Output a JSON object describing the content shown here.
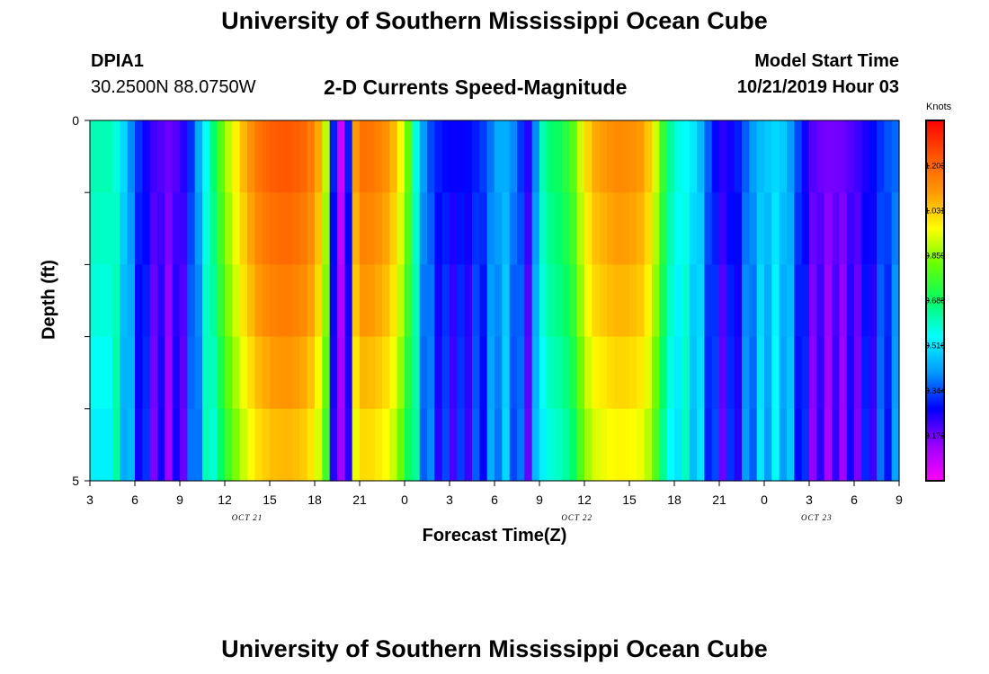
{
  "header": {
    "title_top": "University of Southern Mississippi Ocean Cube",
    "station_id": "DPIA1",
    "coordinates": "30.2500N 88.0750W",
    "model_start_label": "Model Start Time",
    "model_start_value": "10/21/2019 Hour 03",
    "title_bottom": "University of Southern Mississippi Ocean Cube"
  },
  "chart_data": {
    "type": "heatmap",
    "title": "2-D Currents Speed-Magnitude",
    "xlabel": "Forecast Time(Z)",
    "ylabel": "Depth (ft)",
    "x_start_hour": 3,
    "x_end_hour": 57,
    "x_tick_labels": [
      "3",
      "6",
      "9",
      "12",
      "15",
      "18",
      "21",
      "0",
      "3",
      "6",
      "9",
      "12",
      "15",
      "18",
      "21",
      "0",
      "3",
      "6",
      "9"
    ],
    "date_labels": [
      {
        "label": "OCT 21",
        "hour": 13.5
      },
      {
        "label": "OCT 22",
        "hour": 35.5
      },
      {
        "label": "OCT 23",
        "hour": 51.5
      }
    ],
    "y_tick_labels": [
      "0",
      "5"
    ],
    "ylim": [
      0,
      5
    ],
    "depth_levels": 5,
    "colorbar": {
      "label": "Knots",
      "min": 0.0,
      "max": 1.376,
      "tick_values": [
        "1.203",
        "1.031",
        "0.859",
        "0.688",
        "0.516",
        "0.344",
        "0.172"
      ],
      "colors": [
        "#ff00ff",
        "#9900ff",
        "#0000ff",
        "#0099ff",
        "#00ffff",
        "#00ff66",
        "#66ff00",
        "#ffff00",
        "#ff9900",
        "#ff5500",
        "#ff0000"
      ]
    },
    "speed_profile_knots": [
      0.62,
      0.62,
      0.62,
      0.58,
      0.5,
      0.4,
      0.32,
      0.26,
      0.22,
      0.2,
      0.18,
      0.2,
      0.24,
      0.32,
      0.44,
      0.56,
      0.68,
      0.8,
      0.9,
      0.98,
      1.06,
      1.12,
      1.17,
      1.2,
      1.22,
      1.23,
      1.23,
      1.22,
      1.2,
      1.16,
      1.08,
      0.9,
      0.3,
      0.06,
      0.3,
      1.1,
      1.18,
      1.17,
      1.15,
      1.12,
      1.06,
      0.96,
      0.82,
      0.58,
      0.42,
      0.34,
      0.3,
      0.28,
      0.27,
      0.27,
      0.28,
      0.3,
      0.33,
      0.38,
      0.44,
      0.44,
      0.4,
      0.32,
      0.24,
      0.4,
      0.62,
      0.68,
      0.7,
      0.74,
      0.8,
      0.92,
      1.02,
      1.08,
      1.1,
      1.12,
      1.13,
      1.13,
      1.12,
      1.1,
      1.04,
      0.92,
      0.76,
      0.64,
      0.58,
      0.55,
      0.52,
      0.46,
      0.36,
      0.28,
      0.24,
      0.26,
      0.3,
      0.36,
      0.42,
      0.46,
      0.48,
      0.5,
      0.48,
      0.42,
      0.34,
      0.26,
      0.2,
      0.18,
      0.17,
      0.17,
      0.18,
      0.2,
      0.22,
      0.25,
      0.28,
      0.32,
      0.35,
      0.37
    ],
    "depth_factors": [
      1.0,
      0.97,
      0.94,
      0.9,
      0.86
    ],
    "depth_variation": [
      0.0,
      0.02,
      0.04,
      0.05,
      0.06
    ]
  }
}
